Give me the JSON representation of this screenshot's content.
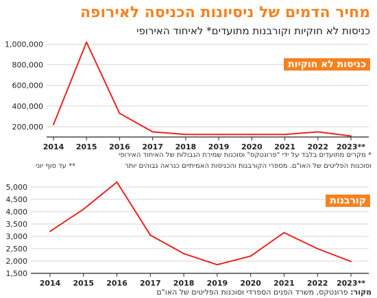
{
  "header": {
    "title": "מחיר הדמים של ניסיונות הכניסה לאירופה",
    "subtitle": "כניסות לא חוקיות וקורבנות מתועדים* לאיחוד האירופי"
  },
  "notes": {
    "footnote_1": "* מקרים מתועדים בלבד על ידי \"פרונטקס\" וסוכנות שמירת הגבולות של האיחוד האירופי",
    "footnote_2": "וסוכנות הפליטים של האו\"ם. מספרי הקורבנות והכניסות האמיתיים כנראה גבוהים יותר",
    "footnote_3": "** עד סוף יוני"
  },
  "source": {
    "label": "מקור:",
    "text": "פרונטקס, משרד הפנים הספרדי וסוכנות הפליטים של האו\"ם"
  },
  "chart_data": [
    {
      "type": "line",
      "title": "כניסות לא חוקיות",
      "x": [
        "2014",
        "2015",
        "2016",
        "2017",
        "2018",
        "2019",
        "2020",
        "2021",
        "2022",
        "2023**"
      ],
      "series": [
        {
          "values": [
            220000,
            1020000,
            330000,
            150000,
            125000,
            125000,
            125000,
            125000,
            150000,
            110000
          ]
        }
      ],
      "y_ticks": [
        200000,
        400000,
        600000,
        800000,
        1000000
      ],
      "y_tick_labels": [
        "200,000",
        "400,000",
        "600,000",
        "800,000",
        "1,000,000"
      ],
      "ylim": [
        100000,
        1050000
      ],
      "color": "#e8241c",
      "grid": true
    },
    {
      "type": "line",
      "title": "קורבנות",
      "x": [
        "2014",
        "2015",
        "2016",
        "2017",
        "2018",
        "2019",
        "2020",
        "2021",
        "2022",
        "2023**"
      ],
      "series": [
        {
          "values": [
            3200,
            4100,
            5200,
            3050,
            2300,
            1850,
            2200,
            3150,
            2500,
            1980
          ]
        }
      ],
      "y_ticks": [
        1500,
        2000,
        2500,
        3000,
        3500,
        4000,
        4500,
        5000
      ],
      "y_tick_labels": [
        "1,500",
        "2,000",
        "2,500",
        "3,000",
        "3,500",
        "4,000",
        "4,500",
        "5,000"
      ],
      "ylim": [
        1500,
        5250
      ],
      "color": "#e8241c",
      "grid": true
    }
  ]
}
